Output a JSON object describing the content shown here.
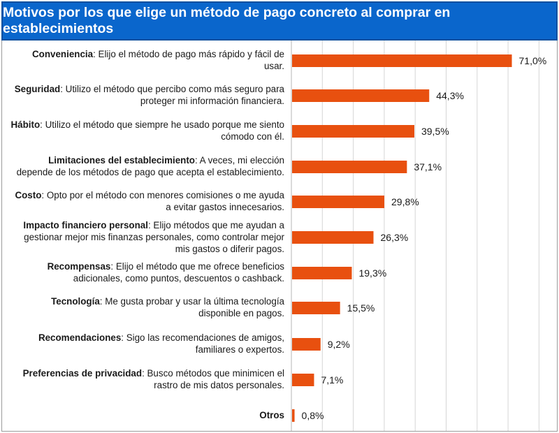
{
  "chart_data": {
    "type": "bar",
    "orientation": "horizontal",
    "title": "Motivos por los que elige un método de pago concreto al comprar en establecimientos",
    "xlabel": "",
    "ylabel": "",
    "xlim": [
      0,
      80
    ],
    "grid": true,
    "bar_color": "#e8500f",
    "categories": [
      {
        "bold": "Conveniencia",
        "rest": ": Elijo el método de pago más rápido y fácil de usar."
      },
      {
        "bold": "Seguridad",
        "rest": ": Utilizo el método que percibo como más seguro para proteger mi información financiera."
      },
      {
        "bold": "Hábito",
        "rest": ": Utilizo el método que siempre he usado porque me siento cómodo con él."
      },
      {
        "bold": "Limitaciones del establecimiento",
        "rest": ": A veces, mi elección depende de los métodos de pago que acepta el establecimiento."
      },
      {
        "bold": "Costo",
        "rest": ": Opto por el método con menores comisiones o me ayuda a evitar gastos innecesarios."
      },
      {
        "bold": "Impacto financiero personal",
        "rest": ": Elijo métodos que me ayudan a gestionar mejor mis finanzas personales, como controlar mejor mis gastos o diferir pagos."
      },
      {
        "bold": "Recompensas",
        "rest": ": Elijo el método que me ofrece beneficios adicionales, como puntos, descuentos o cashback."
      },
      {
        "bold": "Tecnología",
        "rest": ": Me gusta probar y usar la última tecnología disponible en pagos."
      },
      {
        "bold": "Recomendaciones",
        "rest": ": Sigo las recomendaciones de amigos, familiares o expertos."
      },
      {
        "bold": "Preferencias de privacidad",
        "rest": ": Busco métodos que minimicen el rastro de mis datos personales."
      },
      {
        "bold": "Otros",
        "rest": ""
      }
    ],
    "values": [
      71.0,
      44.3,
      39.5,
      37.1,
      29.8,
      26.3,
      19.3,
      15.5,
      9.2,
      7.1,
      0.8
    ],
    "value_labels": [
      "71,0%",
      "44,3%",
      "39,5%",
      "37,1%",
      "29,8%",
      "26,3%",
      "19,3%",
      "15,5%",
      "9,2%",
      "7,1%",
      "0,8%"
    ]
  }
}
